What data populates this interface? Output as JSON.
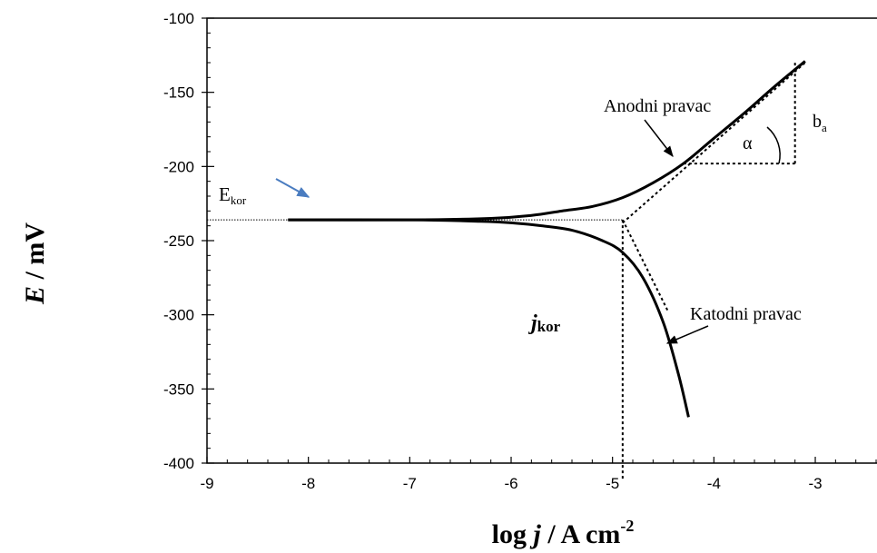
{
  "chart_data": {
    "type": "line",
    "xlabel": "log j / A cm-2",
    "xlabel_parts": {
      "log": "log ",
      "var": "j",
      "unit": " / A cm",
      "sup": "-2"
    },
    "ylabel": "E / mV",
    "ylabel_parts": {
      "var": "E",
      "unit": " / mV"
    },
    "xlim": [
      -9,
      -2.7
    ],
    "ylim": [
      -400,
      -100
    ],
    "xticks": [
      -9,
      -8,
      -7,
      -6,
      -5,
      -4,
      -3
    ],
    "yticks": [
      -100,
      -150,
      -200,
      -250,
      -300,
      -350,
      -400
    ],
    "grid": false,
    "series": [
      {
        "key": "anodic",
        "x": [
          -8.2,
          -7.0,
          -6.2,
          -5.8,
          -5.5,
          -5.2,
          -4.9,
          -4.6,
          -4.3,
          -4.0,
          -3.7,
          -3.4,
          -3.1
        ],
        "y": [
          -236,
          -236,
          -235,
          -233,
          -230,
          -227,
          -221,
          -211,
          -198,
          -181,
          -164,
          -146,
          -129
        ]
      },
      {
        "key": "cathodic",
        "x": [
          -8.2,
          -7.0,
          -6.3,
          -6.0,
          -5.7,
          -5.4,
          -5.1,
          -4.9,
          -4.7,
          -4.5,
          -4.35,
          -4.25
        ],
        "y": [
          -236,
          -236,
          -237,
          -238,
          -240,
          -243,
          -250,
          -258,
          -275,
          -305,
          -340,
          -369
        ]
      }
    ],
    "reference_lines": {
      "e_kor": -236,
      "j_kor": -4.9,
      "anodic_tafel": [
        [
          -4.9,
          -238
        ],
        [
          -3.1,
          -130
        ]
      ],
      "cathodic_tafel": [
        [
          -4.9,
          -236
        ],
        [
          -4.45,
          -298
        ]
      ],
      "alpha_horizontal": {
        "y": -198,
        "x1": -4.3,
        "x2": -3.2
      },
      "ba_vertical": {
        "x": -3.2,
        "y1": -198,
        "y2": -129
      }
    },
    "annotations": {
      "anodni": "Anodni pravac",
      "katodni": "Katodni pravac",
      "alpha": "α",
      "ba_base": "b",
      "ba_sub": "a",
      "ekor_base": "E",
      "ekor_sub": "kor",
      "jkor_base": "j",
      "jkor_sub": "kor"
    },
    "colors": {
      "pointer_arrow": "#4a7cc0",
      "line": "#000000"
    }
  }
}
